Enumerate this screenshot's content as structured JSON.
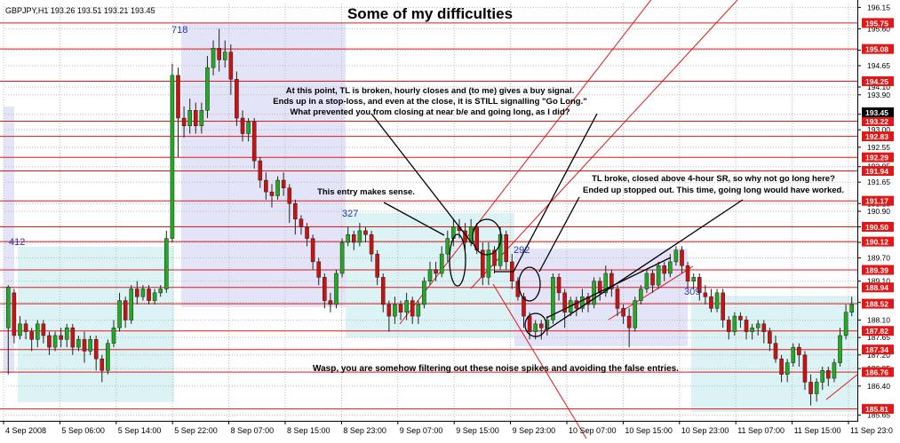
{
  "header": {
    "symbol_line": "GBPJPY,H1  193.26 193.51 193.21 193.45",
    "title": "Some of my difficulties"
  },
  "colors": {
    "background": "#ffffff",
    "grid": "#b8b8b8",
    "hline": "#e01818",
    "bull": "#22aa22",
    "bear": "#cc1111",
    "zone_lavender": "#e4e4f8",
    "zone_cyan": "#dcf3f6",
    "annotation_blue": "#2233bb",
    "price_box": "#e01818",
    "current_price_box": "#000000"
  },
  "price_axis": {
    "tick_labels": [
      "196.15",
      "195.60",
      "195.05",
      "194.65",
      "194.10",
      "193.90",
      "193.40",
      "193.00",
      "192.55",
      "192.05",
      "191.65",
      "191.10",
      "190.90",
      "190.50",
      "190.10",
      "189.70",
      "189.10",
      "188.55",
      "188.10",
      "187.65",
      "187.20",
      "186.85",
      "186.40",
      "185.65"
    ]
  },
  "price_levels": [
    "195.75",
    "195.08",
    "194.25",
    "193.22",
    "192.83",
    "192.29",
    "191.94",
    "191.17",
    "190.50",
    "190.12",
    "189.39",
    "188.94",
    "188.52",
    "187.82",
    "187.34",
    "186.76",
    "185.81"
  ],
  "current_price": "193.45",
  "time_axis": {
    "labels": [
      "4 Sep 2008",
      "5 Sep 06:00",
      "5 Sep 14:00",
      "5 Sep 22:00",
      "8 Sep 07:00",
      "8 Sep 15:00",
      "8 Sep 23:00",
      "9 Sep 07:00",
      "9 Sep 15:00",
      "9 Sep 23:00",
      "10 Sep 07:00",
      "10 Sep 15:00",
      "10 Sep 23:00",
      "11 Sep 07:00",
      "11 Sep 15:00",
      "11 Sep 23:0"
    ]
  },
  "zone_labels": [
    "412",
    "718",
    "327",
    "292",
    "309"
  ],
  "annotations": {
    "top_note": [
      "At this point, TL is broken, hourly closes and (to me) gives a buy signal.",
      "Ends up in a stop-loss, and even at the close, it is STILL signalling \"Go Long.\"",
      "What prevented you from closing at near b/e and going long, as I did?"
    ],
    "entry_note": "This entry makes sense.",
    "right_note": [
      "TL broke, closed above 4-hour SR, so why not go long here?",
      "Ended up stopped out. This time, going long would have worked."
    ],
    "bottom_note": "Wasp, you are somehow filtering out these noise spikes and avoiding the false entries."
  },
  "chart_data": {
    "type": "candlestick",
    "symbol": "GBPJPY",
    "timeframe": "H1",
    "title": "Some of my difficulties",
    "ylim": [
      185.55,
      196.25
    ],
    "candles": [
      [
        187.9,
        188.95,
        189.0,
        186.7
      ],
      [
        188.8,
        187.7,
        188.9,
        187.5
      ],
      [
        187.7,
        188.0,
        188.2,
        187.6
      ],
      [
        188.0,
        187.8,
        188.1,
        187.6
      ],
      [
        187.8,
        187.6,
        187.9,
        187.3
      ],
      [
        187.6,
        188.0,
        188.1,
        187.4
      ],
      [
        188.0,
        187.7,
        188.1,
        187.5
      ],
      [
        187.7,
        187.4,
        187.8,
        187.2
      ],
      [
        187.4,
        187.7,
        187.8,
        187.3
      ],
      [
        187.7,
        187.6,
        187.9,
        187.4
      ],
      [
        187.6,
        187.9,
        188.0,
        187.4
      ],
      [
        187.9,
        187.4,
        188.0,
        187.2
      ],
      [
        187.4,
        187.6,
        187.7,
        187.3
      ],
      [
        187.6,
        187.3,
        187.8,
        187.0
      ],
      [
        187.3,
        187.6,
        187.7,
        187.2
      ],
      [
        187.6,
        187.1,
        187.7,
        186.8
      ],
      [
        187.1,
        186.8,
        187.2,
        186.5
      ],
      [
        186.8,
        187.5,
        187.6,
        186.7
      ],
      [
        187.5,
        187.9,
        188.1,
        187.4
      ],
      [
        187.9,
        188.6,
        188.8,
        187.8
      ],
      [
        188.6,
        188.1,
        188.7,
        187.9
      ],
      [
        188.1,
        188.9,
        189.0,
        188.0
      ],
      [
        188.9,
        188.7,
        189.1,
        188.5
      ],
      [
        188.7,
        188.9,
        189.0,
        188.6
      ],
      [
        188.9,
        188.6,
        189.0,
        188.5
      ],
      [
        188.6,
        188.8,
        188.9,
        188.5
      ],
      [
        188.8,
        188.9,
        189.0,
        188.7
      ],
      [
        188.9,
        190.2,
        190.4,
        188.8
      ],
      [
        190.2,
        194.4,
        194.7,
        190.1
      ],
      [
        194.4,
        193.3,
        194.6,
        192.3
      ],
      [
        193.3,
        193.1,
        193.6,
        192.8
      ],
      [
        193.1,
        193.5,
        193.8,
        192.9
      ],
      [
        193.5,
        193.1,
        193.7,
        192.9
      ],
      [
        193.1,
        193.5,
        193.7,
        192.9
      ],
      [
        193.5,
        194.6,
        194.9,
        193.3
      ],
      [
        194.6,
        195.1,
        195.3,
        194.4
      ],
      [
        195.1,
        194.8,
        195.6,
        194.5
      ],
      [
        194.8,
        195.0,
        195.3,
        194.6
      ],
      [
        195.0,
        194.3,
        195.2,
        193.9
      ],
      [
        194.3,
        193.3,
        194.5,
        193.1
      ],
      [
        193.3,
        192.9,
        193.5,
        192.7
      ],
      [
        192.9,
        193.2,
        193.3,
        192.7
      ],
      [
        193.2,
        192.2,
        193.3,
        192.0
      ],
      [
        192.2,
        191.7,
        192.3,
        191.5
      ],
      [
        191.7,
        191.4,
        191.9,
        191.2
      ],
      [
        191.4,
        191.3,
        191.6,
        191.0
      ],
      [
        191.3,
        191.7,
        191.8,
        191.2
      ],
      [
        191.7,
        191.5,
        191.9,
        191.3
      ],
      [
        191.5,
        191.1,
        191.6,
        190.6
      ],
      [
        191.1,
        190.7,
        191.2,
        190.3
      ],
      [
        190.7,
        190.5,
        190.8,
        190.3
      ],
      [
        190.5,
        190.2,
        190.6,
        190.0
      ],
      [
        190.2,
        189.6,
        190.3,
        189.4
      ],
      [
        189.6,
        189.2,
        189.7,
        189.0
      ],
      [
        189.2,
        188.6,
        189.3,
        188.4
      ],
      [
        188.6,
        188.5,
        188.8,
        188.3
      ],
      [
        188.5,
        189.3,
        189.4,
        188.4
      ],
      [
        189.3,
        190.1,
        190.2,
        189.2
      ],
      [
        190.1,
        190.3,
        190.5,
        190.0
      ],
      [
        190.3,
        190.1,
        190.4,
        189.9
      ],
      [
        190.1,
        190.4,
        190.6,
        190.0
      ],
      [
        190.4,
        190.3,
        190.5,
        190.1
      ],
      [
        190.3,
        189.8,
        190.4,
        189.6
      ],
      [
        189.8,
        189.2,
        189.9,
        189.0
      ],
      [
        189.2,
        188.5,
        189.3,
        188.3
      ],
      [
        188.5,
        188.2,
        188.6,
        187.8
      ],
      [
        188.2,
        188.5,
        188.7,
        188.0
      ],
      [
        188.5,
        188.3,
        188.6,
        188.1
      ],
      [
        188.3,
        188.6,
        188.8,
        188.1
      ],
      [
        188.6,
        188.2,
        188.7,
        188.0
      ],
      [
        188.2,
        188.5,
        188.6,
        188.0
      ],
      [
        188.5,
        189.1,
        189.2,
        188.4
      ],
      [
        189.1,
        189.4,
        189.6,
        189.0
      ],
      [
        189.4,
        189.3,
        189.6,
        189.1
      ],
      [
        189.3,
        189.8,
        190.0,
        189.2
      ],
      [
        189.8,
        190.2,
        190.4,
        189.6
      ],
      [
        190.2,
        190.5,
        190.7,
        190.0
      ],
      [
        190.5,
        190.4,
        190.7,
        190.2
      ],
      [
        190.4,
        190.1,
        190.6,
        189.9
      ],
      [
        190.1,
        190.5,
        190.7,
        190.0
      ],
      [
        190.5,
        189.9,
        190.6,
        189.8
      ],
      [
        189.9,
        189.2,
        190.1,
        189.0
      ],
      [
        189.2,
        189.9,
        190.1,
        189.0
      ],
      [
        189.9,
        189.5,
        190.0,
        189.3
      ],
      [
        189.5,
        190.3,
        190.5,
        189.4
      ],
      [
        190.3,
        189.6,
        190.4,
        189.4
      ],
      [
        189.6,
        189.1,
        189.8,
        188.9
      ],
      [
        189.1,
        188.7,
        189.2,
        188.6
      ],
      [
        188.7,
        188.2,
        188.8,
        187.9
      ],
      [
        188.2,
        187.8,
        188.3,
        187.6
      ],
      [
        187.8,
        188.0,
        188.1,
        187.6
      ],
      [
        188.0,
        187.9,
        188.1,
        187.6
      ],
      [
        187.9,
        188.1,
        188.2,
        187.7
      ],
      [
        188.1,
        189.2,
        189.3,
        188.0
      ],
      [
        189.2,
        188.8,
        189.3,
        188.6
      ],
      [
        188.8,
        188.3,
        188.9,
        187.9
      ],
      [
        188.3,
        188.6,
        188.7,
        188.2
      ],
      [
        188.6,
        188.4,
        188.7,
        188.2
      ],
      [
        188.4,
        188.7,
        188.9,
        188.3
      ],
      [
        188.7,
        188.5,
        188.8,
        188.3
      ],
      [
        188.5,
        189.1,
        189.2,
        188.4
      ],
      [
        189.1,
        188.8,
        189.2,
        188.6
      ],
      [
        188.8,
        189.3,
        189.5,
        188.7
      ],
      [
        189.3,
        188.9,
        189.4,
        188.7
      ],
      [
        188.9,
        188.4,
        189.0,
        188.2
      ],
      [
        188.4,
        188.2,
        188.5,
        188.0
      ],
      [
        188.2,
        187.9,
        188.4,
        187.4
      ],
      [
        187.9,
        188.6,
        188.7,
        187.8
      ],
      [
        188.6,
        188.9,
        189.0,
        188.5
      ],
      [
        188.9,
        189.3,
        189.4,
        188.8
      ],
      [
        189.3,
        189.0,
        189.4,
        188.8
      ],
      [
        189.0,
        189.5,
        189.6,
        188.9
      ],
      [
        189.5,
        189.3,
        189.6,
        189.1
      ],
      [
        189.3,
        189.6,
        189.8,
        189.2
      ],
      [
        189.6,
        189.9,
        190.0,
        189.5
      ],
      [
        189.9,
        189.5,
        190.0,
        189.3
      ],
      [
        189.5,
        189.1,
        189.6,
        188.9
      ],
      [
        189.1,
        189.2,
        189.3,
        188.9
      ],
      [
        189.2,
        188.8,
        189.3,
        188.6
      ],
      [
        188.8,
        188.7,
        189.0,
        188.5
      ],
      [
        188.7,
        188.4,
        188.9,
        188.3
      ],
      [
        188.4,
        188.8,
        188.9,
        188.3
      ],
      [
        188.8,
        188.1,
        188.9,
        187.9
      ],
      [
        188.1,
        187.8,
        188.2,
        187.6
      ],
      [
        187.8,
        188.2,
        188.3,
        187.7
      ],
      [
        188.2,
        188.1,
        188.3,
        187.9
      ],
      [
        188.1,
        187.8,
        188.2,
        187.6
      ],
      [
        187.8,
        187.9,
        188.0,
        187.6
      ],
      [
        187.9,
        188.0,
        188.1,
        187.7
      ],
      [
        188.0,
        187.8,
        188.1,
        187.5
      ],
      [
        187.8,
        187.5,
        187.9,
        187.3
      ],
      [
        187.5,
        187.1,
        187.7,
        187.0
      ],
      [
        187.1,
        186.7,
        187.2,
        186.5
      ],
      [
        186.7,
        187.0,
        187.1,
        186.5
      ],
      [
        187.0,
        187.4,
        187.5,
        186.9
      ],
      [
        187.4,
        187.2,
        187.5,
        186.9
      ],
      [
        187.2,
        186.5,
        187.3,
        186.3
      ],
      [
        186.5,
        186.2,
        186.7,
        185.9
      ],
      [
        186.2,
        186.5,
        186.6,
        186.0
      ],
      [
        186.5,
        186.8,
        186.9,
        186.3
      ],
      [
        186.8,
        186.6,
        186.9,
        186.4
      ],
      [
        186.6,
        187.0,
        187.1,
        186.5
      ],
      [
        187.0,
        187.7,
        187.9,
        186.9
      ],
      [
        187.7,
        188.3,
        188.5,
        187.6
      ],
      [
        188.3,
        188.5,
        188.7,
        188.2
      ]
    ],
    "horizontal_levels": [
      195.75,
      195.08,
      194.25,
      193.22,
      192.83,
      192.29,
      191.94,
      191.17,
      190.5,
      190.12,
      189.39,
      188.94,
      188.52,
      187.82,
      187.34,
      186.76,
      185.81
    ],
    "current_price": 193.45,
    "x_tick_labels": [
      "4 Sep 2008",
      "5 Sep 06:00",
      "5 Sep 14:00",
      "5 Sep 22:00",
      "8 Sep 07:00",
      "8 Sep 15:00",
      "8 Sep 23:00",
      "9 Sep 07:00",
      "9 Sep 15:00",
      "9 Sep 23:00",
      "10 Sep 07:00",
      "10 Sep 15:00",
      "10 Sep 23:00",
      "11 Sep 07:00",
      "11 Sep 15:00",
      "11 Sep 23:0"
    ],
    "grid": true
  }
}
